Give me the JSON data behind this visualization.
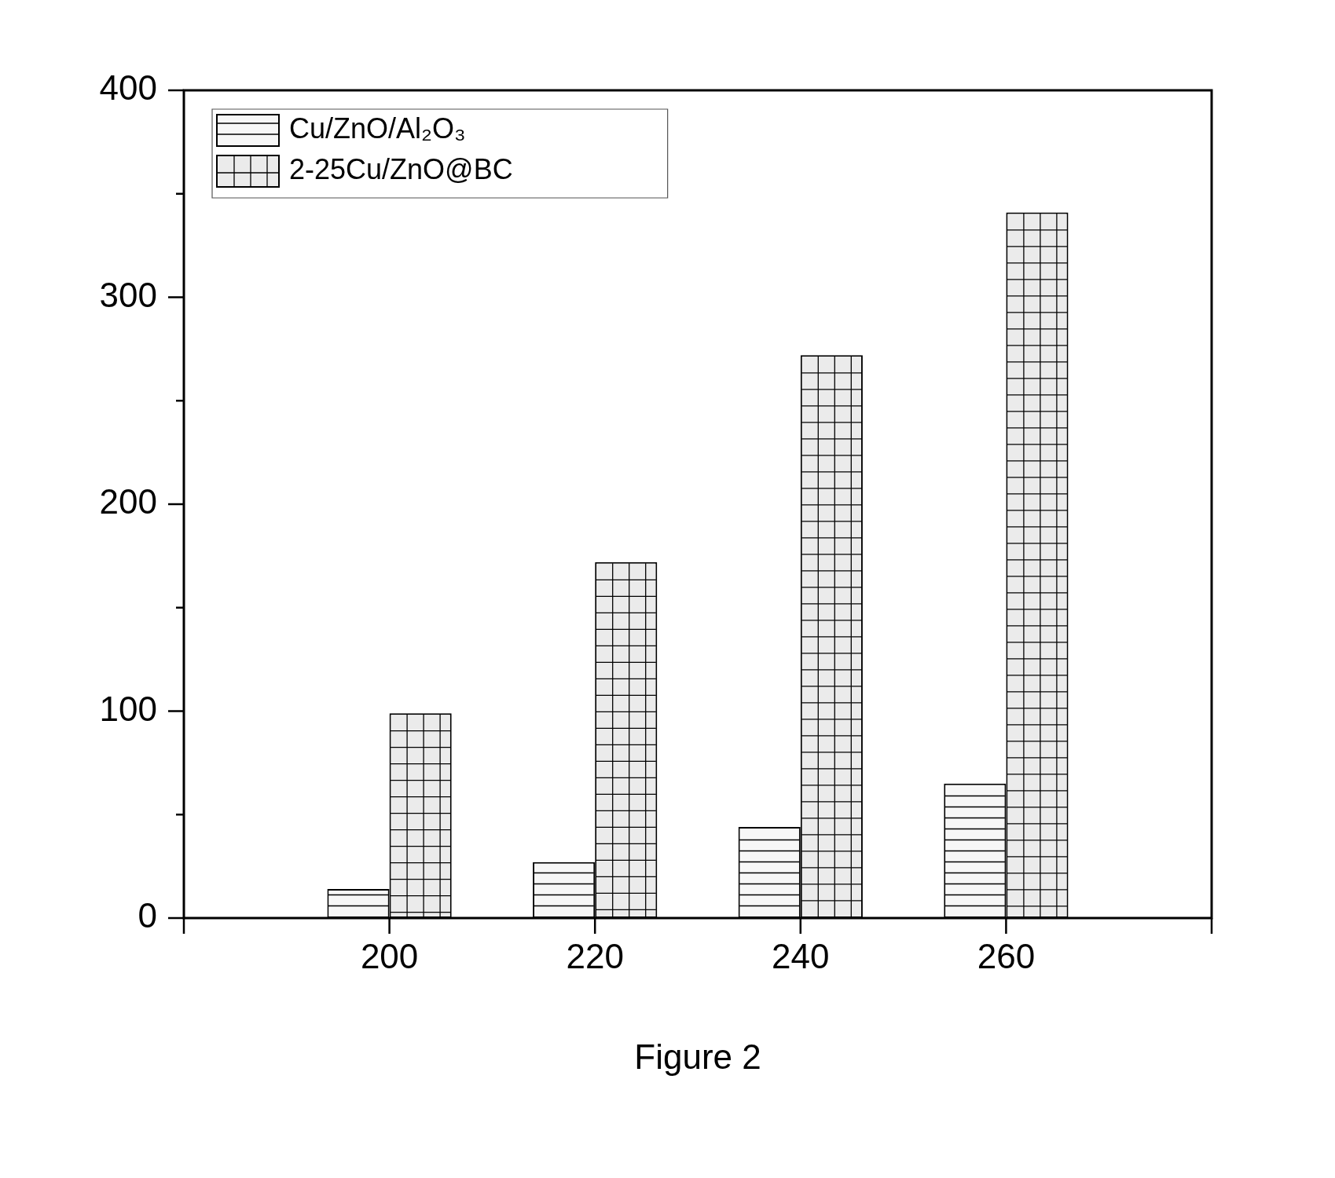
{
  "chart_data": {
    "type": "bar",
    "x": [
      200,
      220,
      240,
      260
    ],
    "series": [
      {
        "name": "Cu/ZnO/Al₂O₃",
        "color": "#f7f7f7",
        "values": [
          14,
          27,
          44,
          65
        ]
      },
      {
        "name": "2-25Cu/ZnO@BC",
        "color": "#ebebeb",
        "values": [
          99,
          172,
          272,
          341
        ]
      }
    ],
    "xlim": [
      180,
      280
    ],
    "xticks": [
      {
        "value": 180,
        "label": null
      },
      200,
      220,
      240,
      260,
      {
        "value": 280,
        "label": null
      }
    ],
    "ylim": [
      0,
      400
    ],
    "yticks": [
      0,
      {
        "value": 50,
        "label": null
      },
      100,
      {
        "value": 150,
        "label": null
      },
      200,
      {
        "value": 250,
        "label": null
      },
      300,
      {
        "value": 350,
        "label": null
      },
      400
    ],
    "grid": false,
    "legend": "top left",
    "annotations": [
      "Figure 2"
    ]
  }
}
